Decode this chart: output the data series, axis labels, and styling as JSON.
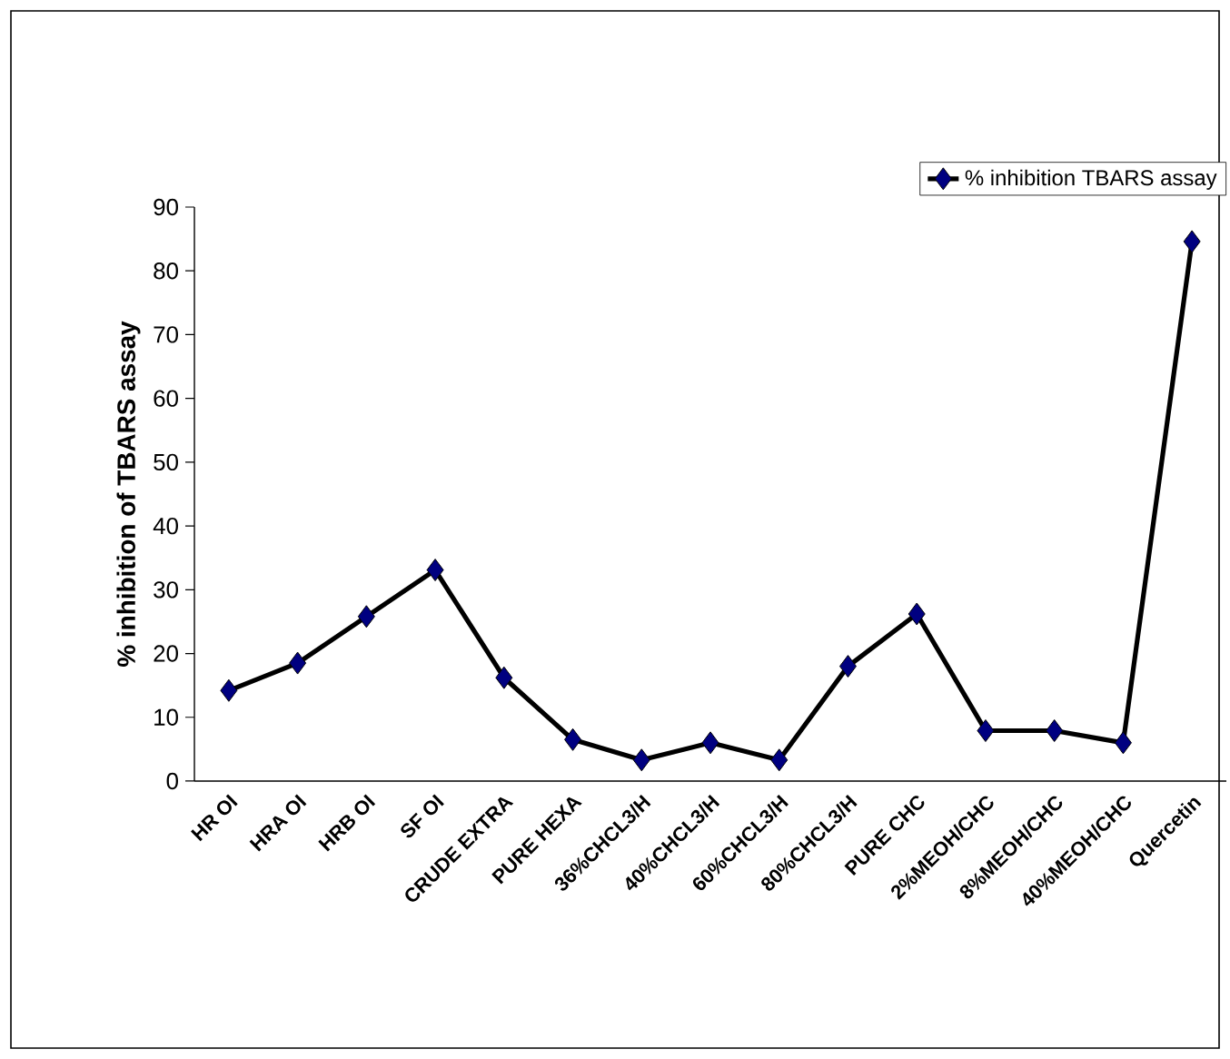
{
  "chart_data": {
    "type": "line",
    "ylabel": "% inhibition of TBARS assay",
    "categories": [
      "HR OI",
      "HRA OI",
      "HRB OI",
      "SF OI",
      "CRUDE EXTRA",
      "PURE HEXA",
      "36%CHCL3/H",
      "40%CHCL3/H",
      "60%CHCL3/H",
      "80%CHCL3/H",
      "PURE CHC",
      "2%MEOH/CHC",
      "8%MEOH/CHC",
      "40%MEOH/CHC",
      "Quercetin"
    ],
    "series": [
      {
        "name": "% inhibition TBARS assay",
        "color": "#000080",
        "values": [
          14.2,
          18.5,
          25.8,
          33.1,
          16.2,
          6.5,
          3.3,
          6.0,
          3.3,
          18.0,
          26.2,
          7.9,
          7.9,
          6.0,
          84.6
        ]
      }
    ],
    "ylim": [
      0,
      90
    ],
    "yticks": [
      0,
      10,
      20,
      30,
      40,
      50,
      60,
      70,
      80,
      90
    ],
    "marker": "diamond",
    "line_style": "solid",
    "legend": "top right"
  }
}
